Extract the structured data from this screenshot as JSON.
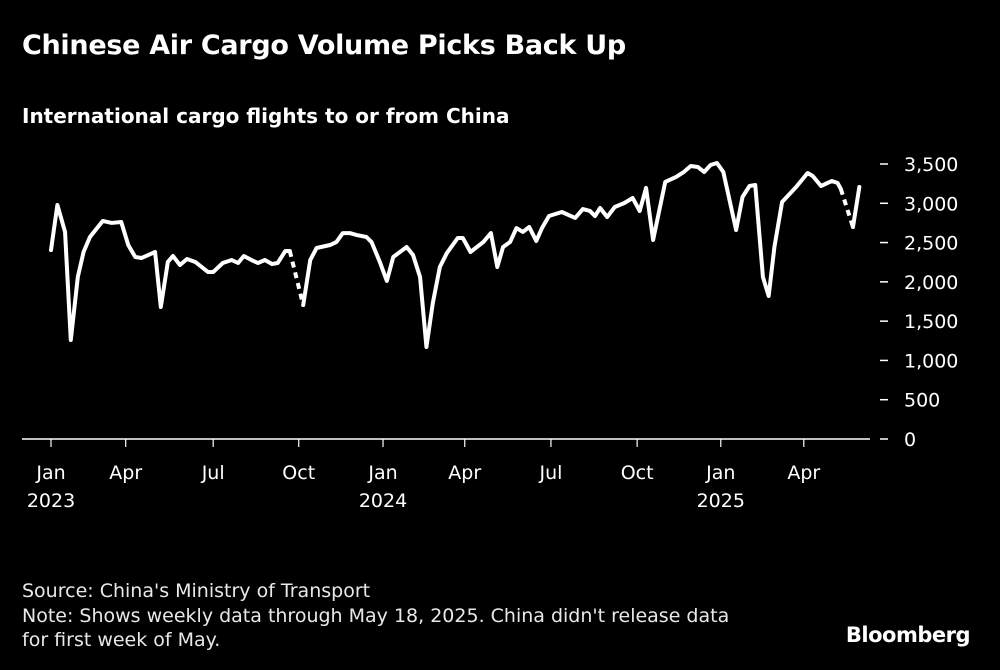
{
  "chart_data": {
    "type": "line",
    "title": "Chinese Air Cargo Volume Picks Back Up",
    "subtitle": "International cargo flights to or from China",
    "xlabel": "",
    "ylabel": "",
    "x_unit": "weeks since first week of Jan 2023",
    "ylim": [
      0,
      3500
    ],
    "yticks": [
      0,
      500,
      1000,
      1500,
      2000,
      2500,
      3000,
      3500
    ],
    "ytick_labels": [
      "0",
      "500",
      "1,000",
      "1,500",
      "2,000",
      "2,500",
      "3,000",
      "3,500"
    ],
    "xticks": [
      {
        "week": 0,
        "label": "Jan",
        "year": "2023"
      },
      {
        "week": 11.7,
        "label": "Apr",
        "year": ""
      },
      {
        "week": 25.4,
        "label": "Jul",
        "year": ""
      },
      {
        "week": 38.8,
        "label": "Oct",
        "year": ""
      },
      {
        "week": 52,
        "label": "Jan",
        "year": "2024"
      },
      {
        "week": 64.8,
        "label": "Apr",
        "year": ""
      },
      {
        "week": 78.3,
        "label": "Jul",
        "year": ""
      },
      {
        "week": 91.8,
        "label": "Oct",
        "year": ""
      },
      {
        "week": 104.9,
        "label": "Jan",
        "year": "2025"
      },
      {
        "week": 117.9,
        "label": "Apr",
        "year": ""
      }
    ],
    "dashed_ranges": [
      [
        37.4,
        39.5
      ],
      [
        123.7,
        125.6
      ]
    ],
    "series": [
      {
        "name": "International cargo flights",
        "color": "#ffffff",
        "points": [
          [
            0,
            2405
          ],
          [
            1.0,
            2978
          ],
          [
            2.2,
            2635
          ],
          [
            3.1,
            1260
          ],
          [
            4.2,
            2062
          ],
          [
            5.1,
            2380
          ],
          [
            6.1,
            2571
          ],
          [
            8.1,
            2775
          ],
          [
            9.5,
            2750
          ],
          [
            11.0,
            2762
          ],
          [
            12.1,
            2469
          ],
          [
            13.2,
            2316
          ],
          [
            14.2,
            2304
          ],
          [
            16.3,
            2380
          ],
          [
            17.2,
            1680
          ],
          [
            18.3,
            2253
          ],
          [
            19.1,
            2329
          ],
          [
            20.2,
            2214
          ],
          [
            21.3,
            2291
          ],
          [
            22.6,
            2253
          ],
          [
            24.6,
            2125
          ],
          [
            25.4,
            2125
          ],
          [
            26.9,
            2240
          ],
          [
            28.3,
            2278
          ],
          [
            29.3,
            2240
          ],
          [
            30.2,
            2329
          ],
          [
            31.4,
            2278
          ],
          [
            32.4,
            2240
          ],
          [
            33.5,
            2278
          ],
          [
            34.6,
            2227
          ],
          [
            35.5,
            2240
          ],
          [
            36.7,
            2393
          ],
          [
            37.4,
            2393
          ],
          [
            39.5,
            1705
          ],
          [
            40.6,
            2278
          ],
          [
            41.6,
            2431
          ],
          [
            43.7,
            2469
          ],
          [
            44.7,
            2507
          ],
          [
            45.7,
            2621
          ],
          [
            46.8,
            2621
          ],
          [
            47.9,
            2596
          ],
          [
            49.4,
            2571
          ],
          [
            50.2,
            2507
          ],
          [
            51.5,
            2253
          ],
          [
            52.6,
            2011
          ],
          [
            53.6,
            2316
          ],
          [
            55.7,
            2444
          ],
          [
            56.7,
            2342
          ],
          [
            57.8,
            2062
          ],
          [
            58.8,
            1171
          ],
          [
            59.8,
            1731
          ],
          [
            60.9,
            2189
          ],
          [
            62.0,
            2367
          ],
          [
            63.7,
            2558
          ],
          [
            64.5,
            2558
          ],
          [
            65.7,
            2380
          ],
          [
            67.7,
            2507
          ],
          [
            68.9,
            2621
          ],
          [
            69.9,
            2189
          ],
          [
            70.8,
            2444
          ],
          [
            71.9,
            2507
          ],
          [
            72.9,
            2685
          ],
          [
            73.9,
            2635
          ],
          [
            74.9,
            2698
          ],
          [
            76.0,
            2520
          ],
          [
            76.9,
            2685
          ],
          [
            78.0,
            2838
          ],
          [
            80.0,
            2889
          ],
          [
            82.1,
            2813
          ],
          [
            83.3,
            2927
          ],
          [
            84.4,
            2902
          ],
          [
            85.2,
            2838
          ],
          [
            86.0,
            2940
          ],
          [
            87.1,
            2825
          ],
          [
            88.3,
            2953
          ],
          [
            89.8,
            3004
          ],
          [
            91.1,
            3067
          ],
          [
            92.2,
            2902
          ],
          [
            93.2,
            3195
          ],
          [
            94.3,
            2533
          ],
          [
            96.2,
            3271
          ],
          [
            97.9,
            3335
          ],
          [
            99.1,
            3398
          ],
          [
            100.2,
            3475
          ],
          [
            101.3,
            3462
          ],
          [
            102.3,
            3398
          ],
          [
            103.3,
            3487
          ],
          [
            104.3,
            3513
          ],
          [
            105.3,
            3398
          ],
          [
            107.3,
            2660
          ],
          [
            108.3,
            3080
          ],
          [
            109.4,
            3220
          ],
          [
            110.3,
            3233
          ],
          [
            111.5,
            2062
          ],
          [
            112.4,
            1820
          ],
          [
            113.3,
            2444
          ],
          [
            114.5,
            3016
          ],
          [
            116.7,
            3207
          ],
          [
            118.5,
            3385
          ],
          [
            119.3,
            3347
          ],
          [
            120.6,
            3220
          ],
          [
            122.3,
            3284
          ],
          [
            123.2,
            3258
          ],
          [
            123.7,
            3182
          ],
          [
            125.6,
            2698
          ],
          [
            126.6,
            3207
          ]
        ]
      }
    ],
    "grid": false,
    "legend": "none"
  },
  "footer": {
    "source": "Source: China's Ministry of Transport",
    "note_line1": "Note: Shows weekly data through May 18, 2025. China didn't release data",
    "note_line2": "for first week of May.",
    "logo": "Bloomberg"
  }
}
